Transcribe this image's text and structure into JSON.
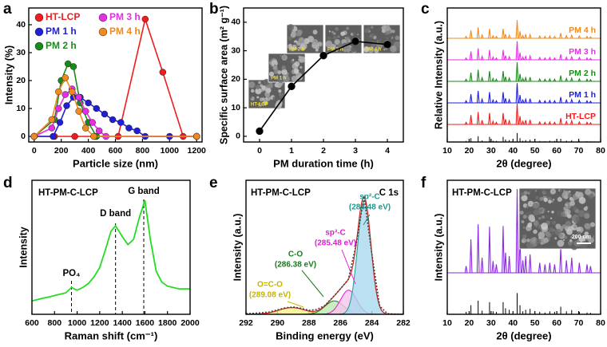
{
  "chart_data": [
    {
      "label": "a",
      "type": "line",
      "xlabel": "Particle size (nm)",
      "ylabel": "Intensity (%)",
      "xlim": [
        -40,
        1240
      ],
      "ylim": [
        -2,
        46
      ],
      "xticks": [
        0,
        200,
        400,
        600,
        800,
        1000,
        1200
      ],
      "yticks": [
        0,
        10,
        20,
        30,
        40
      ],
      "markers": true,
      "legend": "upper left",
      "series": [
        {
          "name": "HT-LCP",
          "color": "#ee1c1c",
          "x": [
            0,
            150,
            300,
            450,
            620,
            820,
            950,
            1100,
            1200
          ],
          "values": [
            0,
            0,
            0,
            0,
            0,
            42,
            23,
            0,
            0
          ]
        },
        {
          "name": "PM 1 h",
          "color": "#1f1fd6",
          "x": [
            0,
            140,
            190,
            240,
            290,
            340,
            400,
            460,
            520,
            580,
            640,
            700,
            760,
            820,
            1000,
            1200
          ],
          "values": [
            0,
            0,
            5,
            11,
            14,
            14,
            12,
            10,
            8,
            6,
            5,
            3,
            2,
            0,
            0,
            0
          ]
        },
        {
          "name": "PM 2 h",
          "color": "#1a8a1a",
          "x": [
            0,
            150,
            200,
            250,
            290,
            340,
            400,
            460,
            1200
          ],
          "values": [
            0,
            6,
            20,
            26,
            25,
            12,
            5,
            0,
            0
          ]
        },
        {
          "name": "PM 3 h",
          "color": "#e62ee6",
          "x": [
            0,
            130,
            180,
            230,
            280,
            330,
            380,
            430,
            480,
            530,
            1200
          ],
          "values": [
            0,
            3,
            10,
            15,
            17,
            14,
            9,
            5,
            2,
            0,
            0
          ]
        },
        {
          "name": "PM 4 h",
          "color": "#f08a1e",
          "x": [
            0,
            130,
            180,
            230,
            280,
            330,
            380,
            440,
            1200
          ],
          "values": [
            0,
            6,
            16,
            21,
            16,
            9,
            3,
            0,
            0
          ]
        }
      ]
    },
    {
      "label": "b",
      "type": "line",
      "xlabel": "PM duration time (h)",
      "ylabel": "Specific surface area (m² g⁻¹)",
      "xlim": [
        -0.5,
        4.5
      ],
      "ylim": [
        -2,
        45
      ],
      "xticks": [
        0,
        1,
        2,
        3,
        4
      ],
      "yticks": [
        0,
        10,
        20,
        30,
        40
      ],
      "markers": true,
      "series": [
        {
          "color": "#000000",
          "x": [
            0,
            1,
            2,
            3,
            4
          ],
          "values": [
            1.8,
            17.5,
            28.3,
            33.3,
            32.2
          ]
        }
      ],
      "insets": [
        "HT-LCP",
        "PM 1 h",
        "PM 2 h",
        "PM 3 h",
        "PM 4 h"
      ]
    },
    {
      "label": "c",
      "type": "stem",
      "xlabel": "2θ (degree)",
      "ylabel": "Relative Intensity (a.u.)",
      "xlim": [
        10,
        80
      ],
      "ylim": [
        0,
        100
      ],
      "xticks": [
        10,
        20,
        30,
        40,
        50,
        60,
        70,
        80
      ],
      "x": [
        18.6,
        20.8,
        24.1,
        25.9,
        29.3,
        30.9,
        32.4,
        35.5,
        36.6,
        38.3,
        41.9,
        43.2,
        44.5,
        45.8,
        47.8,
        52.2,
        54.6,
        56.8,
        59.0,
        61.8,
        64.4,
        66.8,
        70.3,
        73.8,
        75.4
      ],
      "series": [
        {
          "name": "HT-LCP",
          "color": "#ee1c1c",
          "values": [
            10,
            45,
            60,
            20,
            55,
            15,
            10,
            55,
            25,
            18,
            100,
            40,
            15,
            20,
            22,
            12,
            10,
            12,
            10,
            30,
            15,
            18,
            12,
            10,
            8
          ]
        },
        {
          "name": "PM 1 h",
          "color": "#1f1fd6",
          "values": [
            10,
            42,
            58,
            18,
            52,
            14,
            10,
            52,
            22,
            16,
            95,
            38,
            14,
            18,
            20,
            12,
            10,
            12,
            10,
            28,
            14,
            16,
            12,
            10,
            8
          ]
        },
        {
          "name": "PM 2 h",
          "color": "#1a8a1a",
          "values": [
            10,
            42,
            56,
            18,
            50,
            14,
            10,
            50,
            22,
            16,
            92,
            36,
            14,
            18,
            20,
            12,
            10,
            12,
            10,
            28,
            14,
            16,
            12,
            10,
            8
          ]
        },
        {
          "name": "PM 3 h",
          "color": "#e62ee6",
          "values": [
            9,
            40,
            55,
            17,
            48,
            13,
            9,
            48,
            20,
            15,
            90,
            35,
            13,
            17,
            19,
            11,
            9,
            11,
            9,
            26,
            13,
            15,
            11,
            9,
            7
          ]
        },
        {
          "name": "PM 4 h",
          "color": "#f08a1e",
          "values": [
            9,
            38,
            52,
            16,
            46,
            12,
            9,
            46,
            20,
            15,
            88,
            34,
            13,
            17,
            18,
            11,
            9,
            11,
            9,
            25,
            13,
            15,
            11,
            9,
            7
          ]
        }
      ],
      "reference": {
        "color": "#000000",
        "values": [
          8,
          30,
          45,
          12,
          40,
          10,
          8,
          40,
          20,
          15,
          70,
          30,
          10,
          15,
          18,
          8,
          6,
          10,
          8,
          25,
          10,
          14,
          8,
          6,
          5
        ]
      }
    },
    {
      "label": "d",
      "type": "line",
      "xlabel": "Raman shift (cm⁻¹)",
      "ylabel": "Intensity",
      "xlim": [
        600,
        2000
      ],
      "ylim": [
        0,
        100
      ],
      "xticks": [
        600,
        800,
        1000,
        1200,
        1400,
        1600,
        1800,
        2000
      ],
      "series": [
        {
          "color": "#22dd22",
          "x": [
            600,
            650,
            700,
            750,
            800,
            850,
            900,
            950,
            1000,
            1050,
            1100,
            1150,
            1200,
            1250,
            1300,
            1340,
            1400,
            1450,
            1500,
            1550,
            1600,
            1650,
            1700,
            1750,
            1800,
            1850,
            1900,
            1950,
            2000
          ],
          "values": [
            10,
            11,
            12,
            13,
            14,
            15,
            16,
            20,
            18,
            20,
            23,
            28,
            35,
            48,
            62,
            66,
            58,
            52,
            56,
            72,
            85,
            55,
            32,
            24,
            21,
            20,
            19,
            19,
            19
          ]
        }
      ],
      "reference_lines": [
        950,
        1340,
        1590
      ],
      "annotations": [
        "HT-PM-C-LCP",
        "D band",
        "G band",
        "PO₄"
      ]
    },
    {
      "label": "e",
      "type": "line",
      "xlabel": "Binding energy (eV)",
      "ylabel": "Intensity (a.u.)",
      "xlim": [
        292,
        282
      ],
      "ylim": [
        0,
        100
      ],
      "xticks": [
        292,
        290,
        288,
        286,
        284,
        282
      ],
      "series": [
        {
          "color": "#444444",
          "x": [
            292,
            291.5,
            291,
            290.5,
            290,
            289.5,
            289,
            288.5,
            288,
            287.5,
            287,
            286.5,
            286,
            285.5,
            285,
            284.5,
            284,
            283.5,
            283,
            282.5,
            282
          ],
          "values": [
            0.5,
            0.8,
            1.2,
            1.8,
            3.3,
            4.8,
            5.5,
            4.5,
            2.9,
            3.6,
            6.5,
            12.5,
            19,
            26,
            52,
            88,
            45,
            6,
            0.5,
            0.2,
            0.1
          ]
        }
      ],
      "fit_color": "#d62020",
      "components": [
        {
          "name": "sp²-C",
          "position": "(284.48 eV)",
          "center": 284.48,
          "height": 85,
          "fwhm": 1.0,
          "color": "#1a9a8c",
          "fill": "#a9d8ee"
        },
        {
          "name": "sp³-C",
          "position": "(285.48 eV)",
          "center": 285.48,
          "height": 18,
          "fwhm": 1.2,
          "color": "#e020d0",
          "fill": "#f6c6ee"
        },
        {
          "name": "C-O",
          "position": "(286.38 eV)",
          "center": 286.38,
          "height": 10,
          "fwhm": 1.4,
          "color": "#1a7a1a",
          "fill": "#b8eab0"
        },
        {
          "name": "O=C-O",
          "position": "(289.08 eV)",
          "center": 289.08,
          "height": 5,
          "fwhm": 2.0,
          "color": "#c8b400",
          "fill": "#f4f08a"
        }
      ],
      "annotations": [
        "HT-PM-C-LCP",
        "C 1s"
      ]
    },
    {
      "label": "f",
      "type": "stem",
      "xlabel": "2θ (degree)",
      "ylabel": "Intensity (a.u.)",
      "xlim": [
        10,
        80
      ],
      "ylim": [
        0,
        100
      ],
      "xticks": [
        10,
        20,
        30,
        40,
        50,
        60,
        70,
        80
      ],
      "x": [
        18.6,
        20.8,
        24.1,
        25.9,
        29.3,
        30.9,
        32.4,
        35.5,
        36.6,
        38.3,
        41.9,
        43.2,
        44.5,
        45.8,
        47.8,
        52.2,
        54.6,
        56.8,
        59.0,
        61.8,
        64.4,
        66.8,
        70.3,
        73.8,
        75.4
      ],
      "series": [
        {
          "color": "#8a2be2",
          "values": [
            8,
            40,
            58,
            18,
            55,
            14,
            10,
            56,
            24,
            20,
            100,
            42,
            15,
            20,
            22,
            12,
            10,
            12,
            10,
            30,
            15,
            18,
            12,
            10,
            8
          ]
        }
      ],
      "reference": {
        "color": "#000000",
        "values": [
          8,
          30,
          45,
          12,
          40,
          10,
          8,
          40,
          20,
          15,
          70,
          30,
          10,
          15,
          18,
          8,
          6,
          10,
          8,
          25,
          10,
          14,
          8,
          6,
          5
        ]
      },
      "annotations": [
        "HT-PM-C-LCP"
      ],
      "insets": [
        "200 nm"
      ]
    }
  ]
}
